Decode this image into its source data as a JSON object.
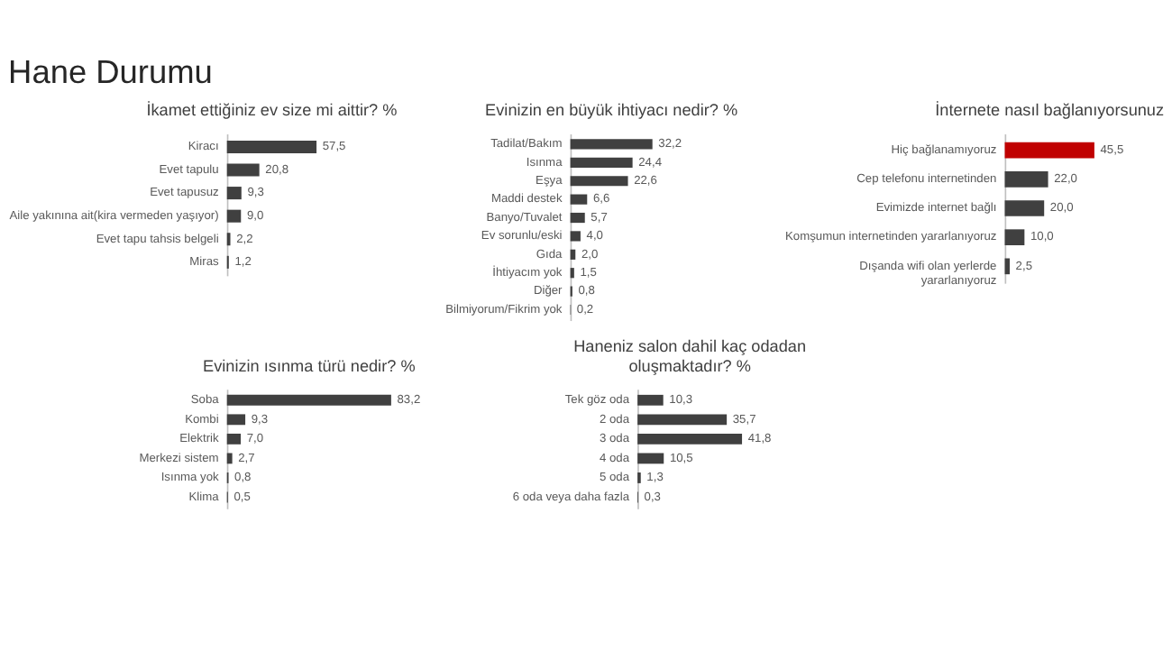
{
  "chart_data": [
    {
      "type": "other",
      "title": "Hane Durumu"
    },
    {
      "type": "bar",
      "orientation": "horizontal",
      "title": "İkamet ettiğiniz ev size mi aittir? %",
      "categories": [
        "Kiracı",
        "Evet tapulu",
        "Evet tapusuz",
        "Aile yakınına ait(kira vermeden yaşıyor)",
        "Evet tapu tahsis belgeli",
        "Miras"
      ],
      "values": [
        57.5,
        20.8,
        9.3,
        9.0,
        2.2,
        1.2
      ],
      "value_labels": [
        "57,5",
        "20,8",
        "9,3",
        "9,0",
        "2,2",
        "1,2"
      ],
      "color": "#404040"
    },
    {
      "type": "bar",
      "orientation": "horizontal",
      "title": "Evinizin en büyük ihtiyacı nedir? %",
      "categories": [
        "Tadilat/Bakım",
        "Isınma",
        "Eşya",
        "Maddi destek",
        "Banyo/Tuvalet",
        "Ev sorunlu/eski",
        "Gıda",
        "İhtiyacım yok",
        "Diğer",
        "Bilmiyorum/Fikrim yok"
      ],
      "values": [
        32.2,
        24.4,
        22.6,
        6.6,
        5.7,
        4.0,
        2.0,
        1.5,
        0.8,
        0.2
      ],
      "value_labels": [
        "32,2",
        "24,4",
        "22,6",
        "6,6",
        "5,7",
        "4,0",
        "2,0",
        "1,5",
        "0,8",
        "0,2"
      ],
      "color": "#404040"
    },
    {
      "type": "bar",
      "orientation": "horizontal",
      "title": "İnternete nasıl bağlanıyorsunuz",
      "categories": [
        "Hiç bağlanamıyoruz",
        "Cep telefonu internetinden",
        "Evimizde internet bağlı",
        "Komşumun internetinden yararlanıyoruz",
        "Dışanda wifi olan yerlerde\nyararlanıyoruz"
      ],
      "values": [
        45.5,
        22.0,
        20.0,
        10.0,
        2.5
      ],
      "value_labels": [
        "45,5",
        "22,0",
        "20,0",
        "10,0",
        "2,5"
      ],
      "colors": [
        "#c00000",
        "#404040",
        "#404040",
        "#404040",
        "#404040"
      ]
    },
    {
      "type": "bar",
      "orientation": "horizontal",
      "title": "Evinizin ısınma türü nedir? %",
      "categories": [
        "Soba",
        "Kombi",
        "Elektrik",
        "Merkezi sistem",
        "Isınma yok",
        "Klima"
      ],
      "values": [
        83.2,
        9.3,
        7.0,
        2.7,
        0.8,
        0.5
      ],
      "value_labels": [
        "83,2",
        "9,3",
        "7,0",
        "2,7",
        "0,8",
        "0,5"
      ],
      "color": "#404040"
    },
    {
      "type": "bar",
      "orientation": "horizontal",
      "title": "Haneniz salon dahil kaç odadan\noluşmaktadır? %",
      "categories": [
        "Tek göz oda",
        "2 oda",
        "3 oda",
        "4 oda",
        "5 oda",
        "6 oda veya daha fazla"
      ],
      "values": [
        10.3,
        35.7,
        41.8,
        10.5,
        1.3,
        0.3
      ],
      "value_labels": [
        "10,3",
        "35,7",
        "41,8",
        "10,5",
        "1,3",
        "0,3"
      ],
      "color": "#404040"
    }
  ]
}
